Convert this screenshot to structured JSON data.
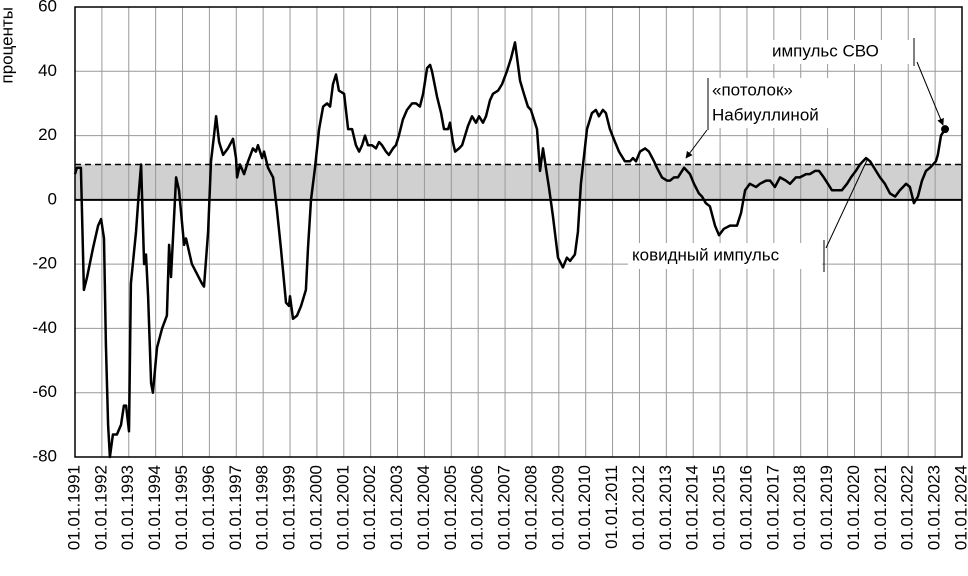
{
  "chart_data": {
    "type": "line",
    "ylabel": "проценты",
    "color": "#000000",
    "ceiling": 11,
    "band_color": "#d0d0d0",
    "grid": true,
    "xlim": [
      1991,
      2024
    ],
    "ylim": [
      -80,
      60
    ],
    "yticks": [
      -80,
      -60,
      -40,
      -20,
      0,
      20,
      40,
      60
    ],
    "xticks": [
      {
        "value": 1991,
        "label": "01.01.1991"
      },
      {
        "value": 1992,
        "label": "01.01.1992"
      },
      {
        "value": 1993,
        "label": "01.01.1993"
      },
      {
        "value": 1994,
        "label": "01.01.1994"
      },
      {
        "value": 1995,
        "label": "01.01.1995"
      },
      {
        "value": 1996,
        "label": "01.01.1996"
      },
      {
        "value": 1997,
        "label": "01.01.1997"
      },
      {
        "value": 1998,
        "label": "01.01.1998"
      },
      {
        "value": 1999,
        "label": "01.01.1999"
      },
      {
        "value": 2000,
        "label": "01.01.2000"
      },
      {
        "value": 2001,
        "label": "01.01.2001"
      },
      {
        "value": 2002,
        "label": "01.01.2002"
      },
      {
        "value": 2003,
        "label": "01.01.2003"
      },
      {
        "value": 2004,
        "label": "01.01.2004"
      },
      {
        "value": 2005,
        "label": "01.01.2005"
      },
      {
        "value": 2006,
        "label": "01.01.2006"
      },
      {
        "value": 2007,
        "label": "01.01.2007"
      },
      {
        "value": 2008,
        "label": "01.01.2008"
      },
      {
        "value": 2009,
        "label": "01.01.2009"
      },
      {
        "value": 2010,
        "label": "01.01.2010"
      },
      {
        "value": 2011,
        "label": "01.01.2011"
      },
      {
        "value": 2012,
        "label": "01.01.2012"
      },
      {
        "value": 2013,
        "label": "01.01.2013"
      },
      {
        "value": 2014,
        "label": "01.01.2014"
      },
      {
        "value": 2015,
        "label": "01.01.2015"
      },
      {
        "value": 2016,
        "label": "01.01.2016"
      },
      {
        "value": 2017,
        "label": "01.01.2017"
      },
      {
        "value": 2018,
        "label": "01.01.2018"
      },
      {
        "value": 2019,
        "label": "01.01.2019"
      },
      {
        "value": 2020,
        "label": "01.01.2020"
      },
      {
        "value": 2021,
        "label": "01.01.2021"
      },
      {
        "value": 2022,
        "label": "01.01.2022"
      },
      {
        "value": 2023,
        "label": "01.01.2023"
      },
      {
        "value": 2024,
        "label": "01.01.2024"
      }
    ],
    "annotations": [
      "импульс СВО",
      "«потолок»",
      "Набиуллиной",
      "ковидный импульс"
    ],
    "x": [
      1991.0,
      1991.07,
      1991.22,
      1991.33,
      1991.45,
      1991.67,
      1991.86,
      1991.97,
      1992.08,
      1992.15,
      1992.23,
      1992.3,
      1992.41,
      1992.56,
      1992.71,
      1992.82,
      1992.9,
      1993.01,
      1993.08,
      1993.27,
      1993.38,
      1993.46,
      1993.57,
      1993.64,
      1993.72,
      1993.83,
      1993.9,
      1994.05,
      1994.24,
      1994.42,
      1994.5,
      1994.57,
      1994.76,
      1994.87,
      1995.06,
      1995.13,
      1995.35,
      1995.72,
      1995.8,
      1995.95,
      1996.06,
      1996.17,
      1996.25,
      1996.36,
      1996.51,
      1996.69,
      1996.88,
      1996.99,
      1997.03,
      1997.14,
      1997.29,
      1997.44,
      1997.62,
      1997.73,
      1997.81,
      1997.96,
      1998.03,
      1998.18,
      1998.37,
      1998.51,
      1998.66,
      1998.85,
      1998.96,
      1999.0,
      1999.11,
      1999.26,
      1999.41,
      1999.59,
      1999.67,
      1999.78,
      1999.93,
      2000.08,
      2000.23,
      2000.38,
      2000.49,
      2000.6,
      2000.71,
      2000.82,
      2001.01,
      2001.16,
      2001.31,
      2001.45,
      2001.57,
      2001.68,
      2001.79,
      2001.9,
      2002.05,
      2002.2,
      2002.31,
      2002.42,
      2002.57,
      2002.68,
      2002.83,
      2002.94,
      2003.05,
      2003.2,
      2003.35,
      2003.54,
      2003.69,
      2003.83,
      2003.95,
      2004.1,
      2004.21,
      2004.28,
      2004.47,
      2004.62,
      2004.73,
      2004.88,
      2004.95,
      2005.06,
      2005.14,
      2005.29,
      2005.4,
      2005.62,
      2005.77,
      2005.92,
      2006.03,
      2006.18,
      2006.29,
      2006.44,
      2006.55,
      2006.74,
      2006.89,
      2007.07,
      2007.22,
      2007.37,
      2007.48,
      2007.56,
      2007.7,
      2007.85,
      2007.96,
      2008.19,
      2008.3,
      2008.41,
      2008.52,
      2008.63,
      2008.78,
      2008.97,
      2009.15,
      2009.3,
      2009.42,
      2009.6,
      2009.71,
      2009.82,
      2010.05,
      2010.23,
      2010.38,
      2010.49,
      2010.64,
      2010.75,
      2010.9,
      2011.09,
      2011.24,
      2011.46,
      2011.65,
      2011.76,
      2011.87,
      2012.02,
      2012.21,
      2012.35,
      2012.54,
      2012.65,
      2012.84,
      2013.02,
      2013.14,
      2013.28,
      2013.43,
      2013.66,
      2013.88,
      2014.03,
      2014.21,
      2014.33,
      2014.47,
      2014.62,
      2014.81,
      2014.96,
      2015.14,
      2015.37,
      2015.63,
      2015.78,
      2015.93,
      2016.11,
      2016.34,
      2016.48,
      2016.71,
      2016.86,
      2017.04,
      2017.23,
      2017.45,
      2017.6,
      2017.82,
      2017.97,
      2018.2,
      2018.34,
      2018.53,
      2018.68,
      2018.86,
      2019.01,
      2019.16,
      2019.31,
      2019.53,
      2019.72,
      2019.87,
      2020.05,
      2020.2,
      2020.43,
      2020.58,
      2020.8,
      2020.95,
      2021.13,
      2021.32,
      2021.51,
      2021.69,
      2021.92,
      2022.06,
      2022.21,
      2022.36,
      2022.51,
      2022.66,
      2022.81,
      2023.03,
      2023.1,
      2023.22,
      2023.37
    ],
    "values": [
      8,
      10,
      10,
      -28,
      -24,
      -15,
      -8,
      -6,
      -12,
      -45,
      -70,
      -80,
      -73,
      -73,
      -70,
      -64,
      -64,
      -72,
      -26,
      -10,
      3,
      11,
      -20,
      -17,
      -30,
      -57,
      -60,
      -46,
      -40,
      -36,
      -14,
      -24,
      7,
      3,
      -14,
      -12,
      -20,
      -26,
      -27,
      -10,
      12,
      20,
      26,
      18,
      14,
      16,
      19,
      13,
      7,
      11,
      8,
      12,
      16,
      15,
      17,
      13,
      15,
      10,
      7,
      -3,
      -15,
      -32,
      -33,
      -30,
      -37,
      -36,
      -33,
      -28,
      -15,
      0,
      10,
      22,
      29,
      30,
      29,
      36,
      39,
      34,
      33,
      22,
      22,
      17,
      15,
      17,
      20,
      17,
      17,
      16,
      18,
      17,
      15,
      14,
      16,
      17,
      20,
      25,
      28,
      30,
      30,
      29,
      33,
      41,
      42,
      40,
      32,
      27,
      22,
      22,
      24,
      18,
      15,
      16,
      17,
      23,
      26,
      24,
      26,
      24,
      26,
      31,
      33,
      34,
      36,
      40,
      44,
      49,
      42,
      37,
      33,
      29,
      28,
      22,
      9,
      16,
      10,
      4,
      -5,
      -18,
      -21,
      -18,
      -19,
      -17,
      -10,
      5,
      22,
      27,
      28,
      26,
      28,
      27,
      22,
      18,
      15,
      12,
      12,
      13,
      12,
      15,
      16,
      15,
      12,
      10,
      7,
      6,
      6,
      7,
      7,
      10,
      8,
      5,
      2,
      1,
      -1,
      -2,
      -8,
      -11,
      -9,
      -8,
      -8,
      -4,
      3,
      5,
      4,
      5,
      6,
      6,
      4,
      7,
      6,
      5,
      7,
      7,
      8,
      8,
      9,
      9,
      7,
      5,
      3,
      3,
      3,
      5,
      7,
      9,
      11,
      13,
      12,
      9,
      7,
      5,
      2,
      1,
      3,
      5,
      4,
      -1,
      1,
      6,
      9,
      10,
      12,
      14,
      20,
      22
    ]
  }
}
